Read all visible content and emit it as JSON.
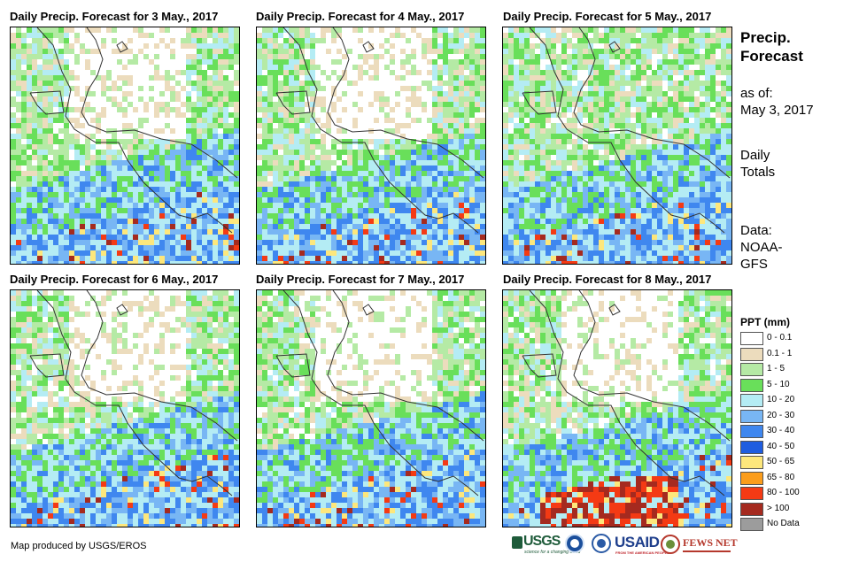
{
  "panels": [
    {
      "title": "Daily Precip. Forecast for 3 May., 2017"
    },
    {
      "title": "Daily Precip. Forecast for 4 May., 2017"
    },
    {
      "title": "Daily Precip. Forecast for 5 May., 2017"
    },
    {
      "title": "Daily Precip. Forecast for 6 May., 2017"
    },
    {
      "title": "Daily Precip. Forecast for 7 May., 2017"
    },
    {
      "title": "Daily Precip. Forecast for 8 May., 2017"
    }
  ],
  "sidebar": {
    "title_line1": "Precip.",
    "title_line2": "Forecast",
    "asof_line1": "as of:",
    "asof_line2": "May 3, 2017",
    "totals_line1": "Daily",
    "totals_line2": "Totals",
    "data_line1": "Data:",
    "data_line2": "NOAA-",
    "data_line3": "GFS"
  },
  "legend": {
    "title": "PPT (mm)",
    "items": [
      {
        "label": "0 - 0.1",
        "color": "#ffffff"
      },
      {
        "label": "0.1 - 1",
        "color": "#ecdcbd"
      },
      {
        "label": "1 - 5",
        "color": "#b5eaa5"
      },
      {
        "label": "5 - 10",
        "color": "#69df5a"
      },
      {
        "label": "10 - 20",
        "color": "#b4ecf4"
      },
      {
        "label": "20 - 30",
        "color": "#78b6f4"
      },
      {
        "label": "30 - 40",
        "color": "#3f87ef"
      },
      {
        "label": "40 - 50",
        "color": "#1f5de0"
      },
      {
        "label": "50 - 65",
        "color": "#fde77c"
      },
      {
        "label": "65 - 80",
        "color": "#fb9d1c"
      },
      {
        "label": "80 - 100",
        "color": "#f43a14"
      },
      {
        "label": "> 100",
        "color": "#a52a1f"
      },
      {
        "label": "No Data",
        "color": "#9c9c9c"
      }
    ]
  },
  "credit": "Map produced by USGS/EROS",
  "logos": {
    "usgs": "USGS",
    "usgs_tagline": "science for a changing world",
    "usaid": "USAID",
    "usaid_tagline": "FROM THE AMERICAN PEOPLE",
    "fewsnet": "FEWS NET"
  }
}
